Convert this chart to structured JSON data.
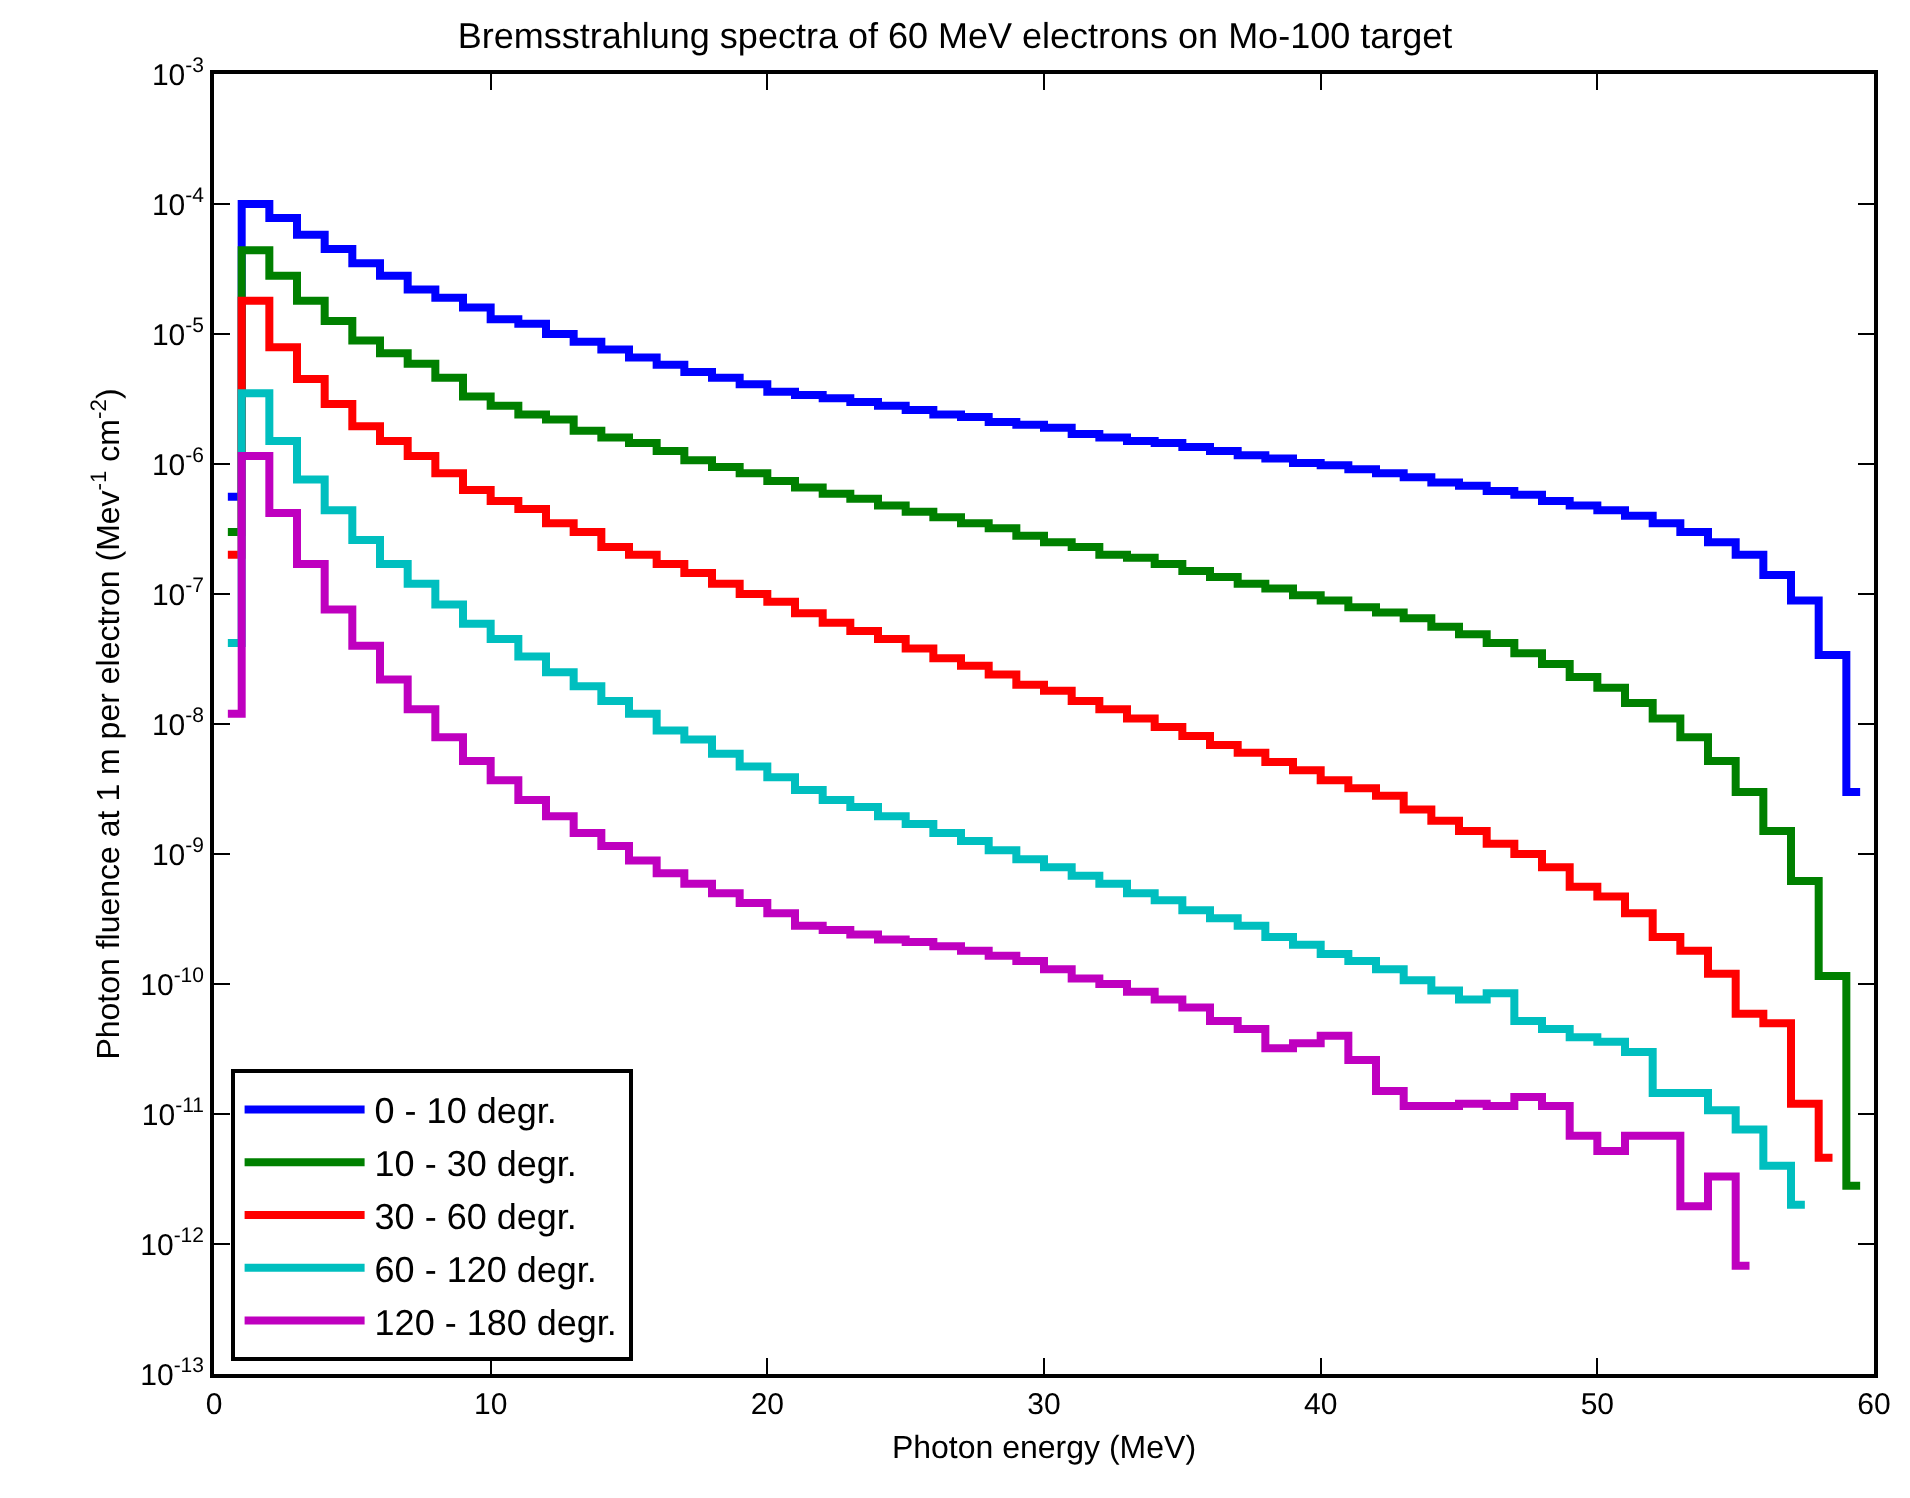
{
  "chart_data": {
    "type": "step",
    "title": "Bremsstrahlung spectra of 60 MeV electrons on Mo-100 target",
    "xlabel": "Photon energy (MeV)",
    "ylabel": "Photon fluence at 1 m per electron (Mev$^{-1}$ cm$^{-2}$)",
    "x": [
      0.5,
      1.5,
      2.5,
      3.5,
      4.5,
      5.5,
      6.5,
      7.5,
      8.5,
      9.5,
      10.5,
      11.5,
      12.5,
      13.5,
      14.5,
      15.5,
      16.5,
      17.5,
      18.5,
      19.5,
      20.5,
      21.5,
      22.5,
      23.5,
      24.5,
      25.5,
      26.5,
      27.5,
      28.5,
      29.5,
      30.5,
      31.5,
      32.5,
      33.5,
      34.5,
      35.5,
      36.5,
      37.5,
      38.5,
      39.5,
      40.5,
      41.5,
      42.5,
      43.5,
      44.5,
      45.5,
      46.5,
      47.5,
      48.5,
      49.5,
      50.5,
      51.5,
      52.5,
      53.5,
      54.5,
      55.5,
      56.5,
      57.5,
      58.5,
      59.5
    ],
    "series": [
      {
        "name": "0 - 10 degr.",
        "color": "#0000ff",
        "values": [
          5.6e-07,
          0.0001,
          7.8e-05,
          5.8e-05,
          4.5e-05,
          3.5e-05,
          2.8e-05,
          2.2e-05,
          1.9e-05,
          1.6e-05,
          1.3e-05,
          1.2e-05,
          1e-05,
          8.7e-06,
          7.6e-06,
          6.6e-06,
          5.8e-06,
          5.1e-06,
          4.6e-06,
          4.1e-06,
          3.6e-06,
          3.4e-06,
          3.2e-06,
          3e-06,
          2.8e-06,
          2.6e-06,
          2.4e-06,
          2.3e-06,
          2.1e-06,
          2e-06,
          1.9e-06,
          1.7e-06,
          1.6e-06,
          1.5e-06,
          1.45e-06,
          1.35e-06,
          1.26e-06,
          1.17e-06,
          1.1e-06,
          1.02e-06,
          9.8e-07,
          9.1e-07,
          8.5e-07,
          7.9e-07,
          7.2e-07,
          6.8e-07,
          6.2e-07,
          5.8e-07,
          5.2e-07,
          4.8e-07,
          4.4e-07,
          4e-07,
          3.5e-07,
          3e-07,
          2.5e-07,
          2e-07,
          1.4e-07,
          8.9e-08,
          3.4e-08,
          3e-09
        ]
      },
      {
        "name": "10 - 30 degr.",
        "color": "#008000",
        "values": [
          3e-07,
          4.4e-05,
          2.8e-05,
          1.8e-05,
          1.26e-05,
          8.9e-06,
          7.1e-06,
          5.9e-06,
          4.6e-06,
          3.3e-06,
          2.8e-06,
          2.4e-06,
          2.2e-06,
          1.8e-06,
          1.6e-06,
          1.45e-06,
          1.26e-06,
          1.07e-06,
          9.5e-07,
          8.5e-07,
          7.4e-07,
          6.6e-07,
          5.9e-07,
          5.4e-07,
          4.8e-07,
          4.3e-07,
          3.9e-07,
          3.5e-07,
          3.2e-07,
          2.8e-07,
          2.5e-07,
          2.3e-07,
          2e-07,
          1.9e-07,
          1.7e-07,
          1.5e-07,
          1.35e-07,
          1.2e-07,
          1.1e-07,
          9.8e-08,
          8.9e-08,
          7.9e-08,
          7.2e-08,
          6.5e-08,
          5.6e-08,
          4.9e-08,
          4.2e-08,
          3.5e-08,
          2.9e-08,
          2.3e-08,
          1.9e-08,
          1.45e-08,
          1.1e-08,
          7.9e-09,
          5.2e-09,
          3e-09,
          1.5e-09,
          6.2e-10,
          1.15e-10,
          2.8e-12
        ]
      },
      {
        "name": "30 - 60 degr.",
        "color": "#ff0000",
        "values": [
          2e-07,
          1.8e-05,
          7.9e-06,
          4.5e-06,
          2.9e-06,
          1.95e-06,
          1.5e-06,
          1.15e-06,
          8.5e-07,
          6.3e-07,
          5.2e-07,
          4.5e-07,
          3.5e-07,
          3e-07,
          2.3e-07,
          2e-07,
          1.7e-07,
          1.45e-07,
          1.2e-07,
          1e-07,
          8.7e-08,
          7.1e-08,
          6e-08,
          5.2e-08,
          4.5e-08,
          3.8e-08,
          3.2e-08,
          2.8e-08,
          2.4e-08,
          2e-08,
          1.8e-08,
          1.5e-08,
          1.3e-08,
          1.1e-08,
          9.5e-09,
          8.1e-09,
          6.9e-09,
          6e-09,
          5.1e-09,
          4.4e-09,
          3.7e-09,
          3.2e-09,
          2.8e-09,
          2.2e-09,
          1.8e-09,
          1.5e-09,
          1.2e-09,
          1e-09,
          7.9e-10,
          5.6e-10,
          4.7e-10,
          3.5e-10,
          2.3e-10,
          1.8e-10,
          1.2e-10,
          5.9e-11,
          5e-11,
          1.2e-11,
          4.6e-12,
          null
        ]
      },
      {
        "name": "60 - 120 degr.",
        "color": "#00bfbf",
        "values": [
          4.2e-08,
          3.5e-06,
          1.5e-06,
          7.6e-07,
          4.4e-07,
          2.6e-07,
          1.7e-07,
          1.2e-07,
          8.3e-08,
          5.9e-08,
          4.5e-08,
          3.3e-08,
          2.5e-08,
          1.95e-08,
          1.5e-08,
          1.2e-08,
          8.9e-09,
          7.6e-09,
          5.9e-09,
          4.7e-09,
          3.9e-09,
          3.1e-09,
          2.6e-09,
          2.3e-09,
          1.95e-09,
          1.7e-09,
          1.45e-09,
          1.26e-09,
          1.07e-09,
          9.1e-10,
          7.9e-10,
          6.8e-10,
          5.9e-10,
          5e-10,
          4.4e-10,
          3.7e-10,
          3.2e-10,
          2.8e-10,
          2.3e-10,
          2e-10,
          1.7e-10,
          1.5e-10,
          1.3e-10,
          1.07e-10,
          8.9e-11,
          7.6e-11,
          8.5e-11,
          5.2e-11,
          4.5e-11,
          3.9e-11,
          3.6e-11,
          3e-11,
          1.45e-11,
          1.45e-11,
          1.07e-11,
          7.6e-12,
          4e-12,
          2e-12,
          null,
          null
        ]
      },
      {
        "name": "120 - 180 degr.",
        "color": "#bf00bf",
        "values": [
          1.2e-08,
          1.15e-06,
          4.2e-07,
          1.7e-07,
          7.6e-08,
          4e-08,
          2.2e-08,
          1.3e-08,
          7.9e-09,
          5.2e-09,
          3.7e-09,
          2.6e-09,
          1.95e-09,
          1.45e-09,
          1.15e-09,
          8.9e-10,
          7.1e-10,
          5.9e-10,
          5e-10,
          4.2e-10,
          3.5e-10,
          2.8e-10,
          2.6e-10,
          2.4e-10,
          2.2e-10,
          2.1e-10,
          1.95e-10,
          1.8e-10,
          1.65e-10,
          1.5e-10,
          1.3e-10,
          1.1e-10,
          1e-10,
          8.7e-11,
          7.6e-11,
          6.6e-11,
          5.2e-11,
          4.5e-11,
          3.2e-11,
          3.5e-11,
          4e-11,
          2.6e-11,
          1.5e-11,
          1.15e-11,
          1.15e-11,
          1.2e-11,
          1.15e-11,
          1.35e-11,
          1.15e-11,
          6.8e-12,
          5.2e-12,
          6.8e-12,
          6.8e-12,
          1.95e-12,
          3.3e-12,
          6.8e-13,
          null,
          null,
          null,
          null
        ]
      }
    ],
    "log": "y",
    "xlim": [
      0,
      60
    ],
    "xticks": [
      0,
      10,
      20,
      30,
      40,
      50,
      60
    ],
    "ylim": [
      1e-13,
      0.001
    ],
    "yticks": [
      {
        "value": 1e-13,
        "label": "10$^{-13}$"
      },
      {
        "value": 1e-12,
        "label": "10$^{-12}$"
      },
      {
        "value": 1e-11,
        "label": "10$^{-11}$"
      },
      {
        "value": 1e-10,
        "label": "10$^{-10}$"
      },
      {
        "value": 1e-09,
        "label": "10$^{-9}$"
      },
      {
        "value": 1e-08,
        "label": "10$^{-8}$"
      },
      {
        "value": 1e-07,
        "label": "10$^{-7}$"
      },
      {
        "value": 1e-06,
        "label": "10$^{-6}$"
      },
      {
        "value": 1e-05,
        "label": "10$^{-5}$"
      },
      {
        "value": 0.0001,
        "label": "10$^{-4}$"
      },
      {
        "value": 0.001,
        "label": "10$^{-3}$"
      }
    ],
    "grid": false,
    "legend": "bottom left",
    "marker": "none",
    "line_style": "solid"
  }
}
